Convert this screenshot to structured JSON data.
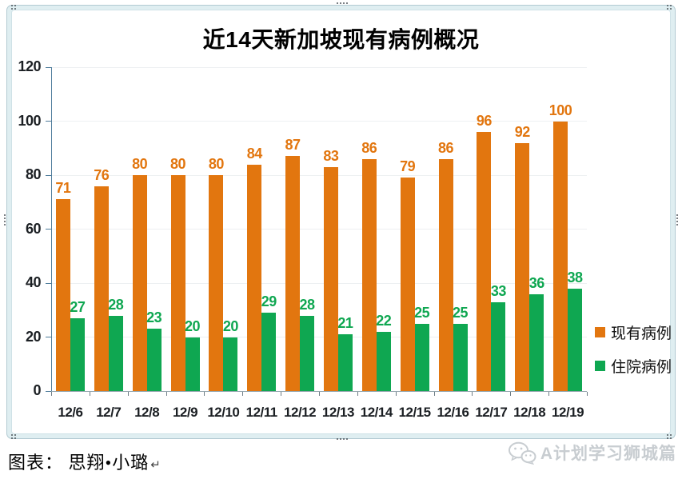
{
  "chart_data": {
    "type": "bar",
    "title": "近14天新加坡现有病例概况",
    "categories": [
      "12/6",
      "12/7",
      "12/8",
      "12/9",
      "12/10",
      "12/11",
      "12/12",
      "12/13",
      "12/14",
      "12/15",
      "12/16",
      "12/17",
      "12/18",
      "12/19"
    ],
    "series": [
      {
        "name": "现有病例",
        "color": "#E2760F",
        "values": [
          71,
          76,
          80,
          80,
          80,
          84,
          87,
          83,
          86,
          79,
          86,
          96,
          92,
          100
        ]
      },
      {
        "name": "住院病例",
        "color": "#0FA751",
        "values": [
          27,
          28,
          23,
          20,
          20,
          29,
          28,
          21,
          22,
          25,
          25,
          33,
          36,
          38
        ]
      }
    ],
    "xlabel": "",
    "ylabel": "",
    "ylim": [
      0,
      120
    ],
    "yticks": [
      0,
      20,
      40,
      60,
      80,
      100,
      120
    ],
    "grid": true,
    "legend_position": "right",
    "data_labels": true
  },
  "footer": {
    "caption": "图表： 思翔•小璐",
    "line_break_mark": "↵",
    "watermark_text": "A计划学习狮城篇"
  },
  "colors": {
    "bar_existing": "#E2760F",
    "bar_hospitalized": "#0FA751",
    "axis": "#4E7C9B",
    "gridline": "#EDF0F2",
    "frame_fill": "#DFEEF1",
    "watermark": "#C8CDD1"
  }
}
